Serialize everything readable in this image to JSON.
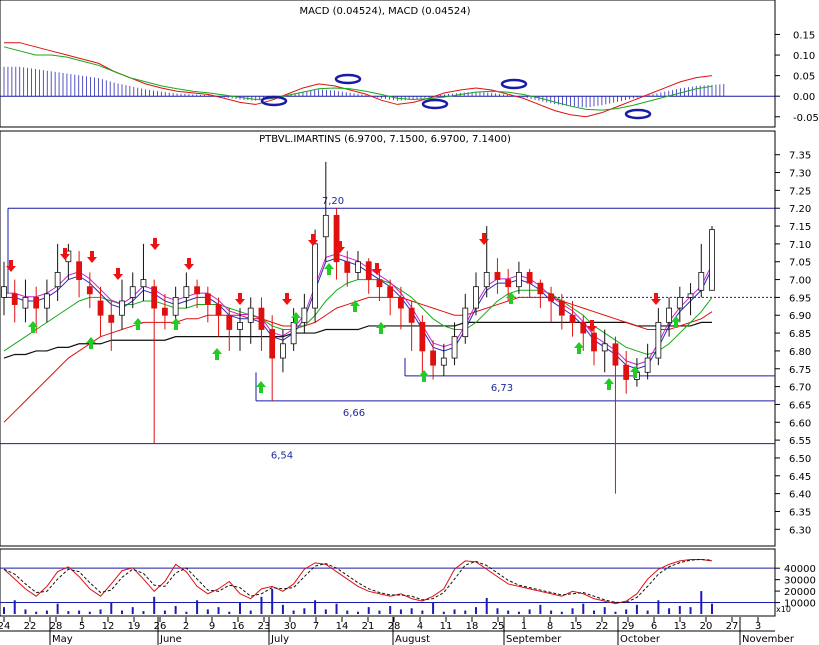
{
  "colors": {
    "background": "#ffffff",
    "frame": "#000000",
    "level_line": "#1a1aa8",
    "macd_hist": "#2a2ab8",
    "macd_line": "#e01010",
    "signal_line": "#18a818",
    "price_red": "#e01010",
    "price_black": "#111111",
    "ma_short": "#2a2ab8",
    "ma_mid": "#18a818",
    "ma_magenta": "#cc22cc",
    "ma_long_red": "#e01010",
    "ma_long_black": "#111111",
    "buy_arrow": "#22cc22",
    "sell_arrow": "#ee1111",
    "circle_marker": "#1a1aa8",
    "volume_bar": "#1a1ab8",
    "stoch_k": "#e01010",
    "stoch_d": "#111111"
  },
  "chart_data": [
    {
      "type": "bar",
      "panel": "macd",
      "title": "MACD (0.04524), MACD (0.04524)",
      "yticks": [
        "0.15",
        "0.10",
        "0.05",
        "0.00",
        "-0.05"
      ],
      "ylim": [
        -0.07,
        0.19
      ],
      "series": [
        {
          "values": [
            0.13,
            0.13,
            0.12,
            0.11,
            0.1,
            0.09,
            0.08,
            0.06,
            0.045,
            0.03,
            0.02,
            0.012,
            0.008,
            0.004,
            -0.005,
            -0.015,
            -0.02,
            -0.01,
            0.005,
            0.02,
            0.03,
            0.025,
            0.015,
            0.005,
            -0.01,
            -0.02,
            -0.015,
            -0.005,
            0.008,
            0.015,
            0.02,
            0.015,
            0.005,
            -0.005,
            -0.02,
            -0.035,
            -0.045,
            -0.05,
            -0.04,
            -0.025,
            -0.01,
            0.005,
            0.02,
            0.035,
            0.045,
            0.05
          ]
        },
        {
          "values": [
            0.12,
            0.11,
            0.1,
            0.1,
            0.095,
            0.085,
            0.075,
            0.06,
            0.045,
            0.035,
            0.025,
            0.018,
            0.012,
            0.008,
            0.003,
            -0.003,
            -0.008,
            -0.006,
            0.002,
            0.01,
            0.018,
            0.02,
            0.018,
            0.012,
            0.004,
            -0.005,
            -0.008,
            -0.006,
            -0.002,
            0.004,
            0.01,
            0.012,
            0.01,
            0.004,
            -0.004,
            -0.014,
            -0.024,
            -0.032,
            -0.034,
            -0.03,
            -0.022,
            -0.012,
            -0.002,
            0.008,
            0.018,
            0.024
          ]
        }
      ],
      "markers": [
        "2",
        "3",
        "2",
        "3",
        "2"
      ]
    },
    {
      "type": "candlestick",
      "panel": "price",
      "title": "PTBVL.IMARTINS (6.9700, 7.1500, 6.9700, 7.1400)",
      "yticks": [
        "7.35",
        "7.30",
        "7.25",
        "7.20",
        "7.15",
        "7.10",
        "7.05",
        "7.00",
        "6.95",
        "6.90",
        "6.85",
        "6.80",
        "6.75",
        "6.70",
        "6.65",
        "6.60",
        "6.55",
        "6.50",
        "6.45",
        "6.40",
        "6.35",
        "6.30"
      ],
      "ylim": [
        6.27,
        7.38
      ],
      "levels": [
        {
          "label": "7,20",
          "value": 7.2
        },
        {
          "label": "6,73",
          "value": 6.73
        },
        {
          "label": "6,66",
          "value": 6.66
        },
        {
          "label": "6,54",
          "value": 6.54
        }
      ],
      "last_close": 7.14,
      "close": [
        6.98,
        6.93,
        6.95,
        6.92,
        6.96,
        7.02,
        7.08,
        7.0,
        6.96,
        6.9,
        6.88,
        6.94,
        6.98,
        7.0,
        6.92,
        6.9,
        6.95,
        6.98,
        6.96,
        6.93,
        6.9,
        6.86,
        6.88,
        6.92,
        6.86,
        6.78,
        6.82,
        6.88,
        6.92,
        7.1,
        7.18,
        7.05,
        7.02,
        7.05,
        7.0,
        6.98,
        6.95,
        6.92,
        6.88,
        6.8,
        6.76,
        6.78,
        6.84,
        6.92,
        6.98,
        7.02,
        7.0,
        6.98,
        7.02,
        6.99,
        6.96,
        6.94,
        6.9,
        6.88,
        6.85,
        6.8,
        6.82,
        6.76,
        6.72,
        6.74,
        6.78,
        6.88,
        6.92,
        6.95,
        6.96,
        7.02,
        7.14
      ],
      "open": [
        6.95,
        6.96,
        6.92,
        6.95,
        6.92,
        6.98,
        7.05,
        7.05,
        6.98,
        6.94,
        6.9,
        6.9,
        6.95,
        6.98,
        6.98,
        6.92,
        6.9,
        6.95,
        6.98,
        6.96,
        6.93,
        6.9,
        6.86,
        6.88,
        6.92,
        6.86,
        6.78,
        6.82,
        6.88,
        6.92,
        7.12,
        7.18,
        7.05,
        7.02,
        7.05,
        7.0,
        6.98,
        6.95,
        6.92,
        6.88,
        6.8,
        6.76,
        6.78,
        6.84,
        6.92,
        6.98,
        7.02,
        7.0,
        6.98,
        7.02,
        6.99,
        6.96,
        6.94,
        6.9,
        6.88,
        6.85,
        6.8,
        6.82,
        6.76,
        6.72,
        6.74,
        6.78,
        6.88,
        6.92,
        6.95,
        6.97,
        6.97
      ],
      "high": [
        7.05,
        7.0,
        7.0,
        6.98,
        7.0,
        7.1,
        7.1,
        7.08,
        7.02,
        6.98,
        6.94,
        7.0,
        7.02,
        7.1,
        7.0,
        6.96,
        6.98,
        7.02,
        7.0,
        6.98,
        6.95,
        6.92,
        6.92,
        6.95,
        6.95,
        6.9,
        6.86,
        6.92,
        6.96,
        7.14,
        7.33,
        7.2,
        7.08,
        7.08,
        7.06,
        7.03,
        7.0,
        6.98,
        6.94,
        6.9,
        6.83,
        6.82,
        6.88,
        6.96,
        7.02,
        7.15,
        7.06,
        7.03,
        7.05,
        7.03,
        7.0,
        6.98,
        6.96,
        6.94,
        6.9,
        6.86,
        6.86,
        6.84,
        6.8,
        6.78,
        6.82,
        6.92,
        6.95,
        6.98,
        6.99,
        7.1,
        7.15
      ],
      "low": [
        6.9,
        6.88,
        6.88,
        6.85,
        6.88,
        6.94,
        7.0,
        6.95,
        6.92,
        6.84,
        6.8,
        6.86,
        6.92,
        6.94,
        6.54,
        6.86,
        6.86,
        6.92,
        6.92,
        6.88,
        6.84,
        6.8,
        6.8,
        6.82,
        6.8,
        6.66,
        6.74,
        6.8,
        6.85,
        6.88,
        7.05,
        7.0,
        6.98,
        7.0,
        6.96,
        6.94,
        6.9,
        6.86,
        6.8,
        6.73,
        6.72,
        6.73,
        6.76,
        6.82,
        6.9,
        6.95,
        6.96,
        6.94,
        6.96,
        6.95,
        6.92,
        6.88,
        6.86,
        6.84,
        6.8,
        6.76,
        6.74,
        6.4,
        6.68,
        6.7,
        6.72,
        6.76,
        6.84,
        6.88,
        6.9,
        6.95,
        6.97
      ],
      "ma_short": [
        6.95,
        6.95,
        6.94,
        6.94,
        6.95,
        6.97,
        7.0,
        7.01,
        6.99,
        6.96,
        6.93,
        6.92,
        6.94,
        6.97,
        6.96,
        6.94,
        6.93,
        6.94,
        6.95,
        6.95,
        6.93,
        6.9,
        6.89,
        6.89,
        6.88,
        6.84,
        6.83,
        6.85,
        6.89,
        6.97,
        7.05,
        7.06,
        7.05,
        7.04,
        7.02,
        7.0,
        6.98,
        6.95,
        6.91,
        6.86,
        6.81,
        6.8,
        6.81,
        6.86,
        6.92,
        6.97,
        6.99,
        6.99,
        7.0,
        6.99,
        6.97,
        6.94,
        6.92,
        6.9,
        6.87,
        6.83,
        6.81,
        6.79,
        6.76,
        6.75,
        6.76,
        6.81,
        6.87,
        6.91,
        6.94,
        6.97,
        7.03
      ],
      "ma_mid": [
        6.8,
        6.82,
        6.84,
        6.86,
        6.88,
        6.9,
        6.92,
        6.94,
        6.95,
        6.95,
        6.94,
        6.93,
        6.93,
        6.94,
        6.94,
        6.93,
        6.92,
        6.92,
        6.93,
        6.93,
        6.93,
        6.92,
        6.91,
        6.9,
        6.89,
        6.87,
        6.86,
        6.86,
        6.87,
        6.9,
        6.94,
        6.97,
        6.99,
        7.0,
        7.0,
        7.0,
        6.99,
        6.97,
        6.95,
        6.92,
        6.89,
        6.87,
        6.86,
        6.86,
        6.88,
        6.91,
        6.94,
        6.96,
        6.97,
        6.97,
        6.97,
        6.96,
        6.94,
        6.92,
        6.9,
        6.87,
        6.85,
        6.83,
        6.81,
        6.8,
        6.79,
        6.8,
        6.82,
        6.85,
        6.88,
        6.91,
        6.95
      ],
      "ma_long_red": [
        6.6,
        6.63,
        6.66,
        6.69,
        6.72,
        6.75,
        6.78,
        6.8,
        6.82,
        6.84,
        6.85,
        6.86,
        6.87,
        6.88,
        6.88,
        6.88,
        6.88,
        6.89,
        6.89,
        6.9,
        6.9,
        6.9,
        6.9,
        6.89,
        6.89,
        6.88,
        6.87,
        6.87,
        6.87,
        6.88,
        6.9,
        6.92,
        6.93,
        6.94,
        6.95,
        6.95,
        6.95,
        6.95,
        6.94,
        6.93,
        6.92,
        6.91,
        6.9,
        6.9,
        6.91,
        6.92,
        6.93,
        6.94,
        6.95,
        6.95,
        6.95,
        6.95,
        6.94,
        6.93,
        6.92,
        6.91,
        6.9,
        6.89,
        6.88,
        6.87,
        6.86,
        6.86,
        6.86,
        6.87,
        6.88,
        6.89,
        6.91
      ],
      "ma_long_black": [
        6.78,
        6.79,
        6.79,
        6.8,
        6.8,
        6.81,
        6.81,
        6.82,
        6.82,
        6.82,
        6.83,
        6.83,
        6.83,
        6.83,
        6.83,
        6.83,
        6.84,
        6.84,
        6.84,
        6.84,
        6.84,
        6.84,
        6.84,
        6.84,
        6.84,
        6.84,
        6.84,
        6.85,
        6.85,
        6.85,
        6.86,
        6.86,
        6.86,
        6.86,
        6.87,
        6.87,
        6.87,
        6.87,
        6.87,
        6.87,
        6.87,
        6.87,
        6.87,
        6.88,
        6.88,
        6.88,
        6.88,
        6.88,
        6.88,
        6.88,
        6.88,
        6.88,
        6.88,
        6.88,
        6.88,
        6.88,
        6.88,
        6.88,
        6.88,
        6.87,
        6.87,
        6.87,
        6.87,
        6.87,
        6.87,
        6.88,
        6.88
      ]
    },
    {
      "type": "bar",
      "panel": "volume",
      "yticks": [
        "40000",
        "30000",
        "20000",
        "10000"
      ],
      "ylim": [
        0,
        55000
      ],
      "values": [
        6000,
        12000,
        4000,
        2000,
        3000,
        9000,
        2500,
        3000,
        2000,
        4000,
        10000,
        3000,
        6000,
        2500,
        15000,
        3000,
        7000,
        2000,
        12000,
        4000,
        6000,
        2000,
        10000,
        3000,
        15000,
        22000,
        8000,
        3000,
        5000,
        12000,
        4000,
        9000,
        3000,
        2000,
        6000,
        3000,
        7000,
        4000,
        5000,
        3000,
        10000,
        2000,
        4000,
        3000,
        6000,
        14000,
        5000,
        3000,
        2000,
        4000,
        8000,
        3000,
        2000,
        5000,
        9000,
        3000,
        6000,
        2000,
        4000,
        8000,
        3000,
        12000,
        5000,
        7000,
        6000,
        20000,
        9000
      ],
      "stoch_k": [
        0.75,
        0.55,
        0.35,
        0.2,
        0.4,
        0.7,
        0.8,
        0.6,
        0.35,
        0.2,
        0.45,
        0.72,
        0.78,
        0.55,
        0.3,
        0.5,
        0.85,
        0.7,
        0.4,
        0.25,
        0.35,
        0.5,
        0.25,
        0.15,
        0.35,
        0.4,
        0.3,
        0.45,
        0.75,
        0.88,
        0.85,
        0.7,
        0.55,
        0.4,
        0.3,
        0.25,
        0.2,
        0.25,
        0.15,
        0.1,
        0.2,
        0.35,
        0.75,
        0.92,
        0.9,
        0.75,
        0.6,
        0.45,
        0.4,
        0.35,
        0.3,
        0.25,
        0.2,
        0.3,
        0.25,
        0.15,
        0.1,
        0.05,
        0.1,
        0.25,
        0.55,
        0.75,
        0.85,
        0.92,
        0.95,
        0.95,
        0.92
      ]
    }
  ],
  "x_axis": {
    "day_ticks": [
      "24",
      "22",
      "28",
      "5",
      "12",
      "19",
      "26",
      "2",
      "9",
      "16",
      "23",
      "30",
      "7",
      "14",
      "21",
      "28",
      "4",
      "11",
      "18",
      "25",
      "1",
      "8",
      "15",
      "22",
      "29",
      "6",
      "13",
      "20",
      "27",
      "3"
    ],
    "month_labels": [
      "May",
      "June",
      "July",
      "August",
      "September",
      "October",
      "November"
    ],
    "volume_unit": "x10"
  }
}
